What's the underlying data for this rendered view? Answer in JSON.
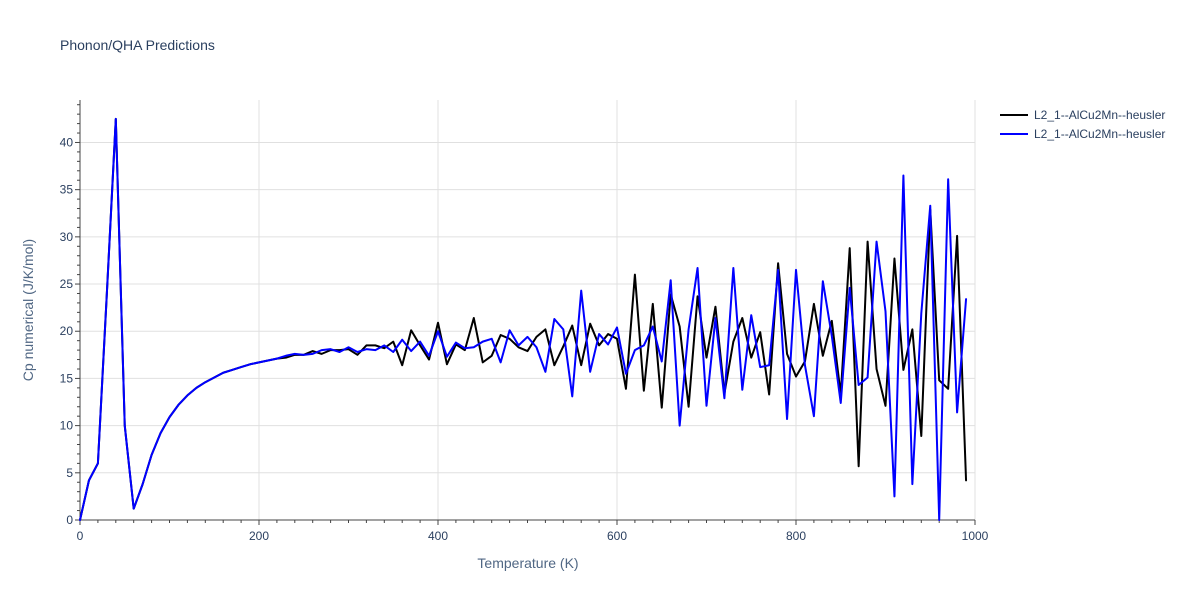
{
  "chart_data": {
    "type": "line",
    "title": "Phonon/QHA Predictions",
    "xlabel": "Temperature (K)",
    "ylabel": "Cp numerical (J/K/mol)",
    "xlim": [
      0,
      1000
    ],
    "ylim": [
      0,
      44.5
    ],
    "x_ticks": [
      0,
      200,
      400,
      600,
      800,
      1000
    ],
    "y_ticks": [
      0,
      5,
      10,
      15,
      20,
      25,
      30,
      35,
      40
    ],
    "grid": true,
    "legend_position": "top-right",
    "x": [
      0,
      10,
      20,
      30,
      40,
      50,
      60,
      70,
      80,
      90,
      100,
      110,
      120,
      130,
      140,
      150,
      160,
      170,
      180,
      190,
      200,
      210,
      220,
      230,
      240,
      250,
      260,
      270,
      280,
      290,
      300,
      310,
      320,
      330,
      340,
      350,
      360,
      370,
      380,
      390,
      400,
      410,
      420,
      430,
      440,
      450,
      460,
      470,
      480,
      490,
      500,
      510,
      520,
      530,
      540,
      550,
      560,
      570,
      580,
      590,
      600,
      610,
      620,
      630,
      640,
      650,
      660,
      670,
      680,
      690,
      700,
      710,
      720,
      730,
      740,
      750,
      760,
      770,
      780,
      790,
      800,
      810,
      820,
      830,
      840,
      850,
      860,
      870,
      880,
      890,
      900,
      910,
      920,
      930,
      940,
      950,
      960,
      970,
      980,
      990
    ],
    "series": [
      {
        "name": "L2_1--AlCu2Mn--heusler",
        "color": "#000000",
        "values": [
          0,
          4.2,
          6.0,
          24.0,
          42.5,
          10.0,
          1.2,
          3.8,
          6.9,
          9.2,
          10.9,
          12.2,
          13.2,
          14.0,
          14.6,
          15.1,
          15.6,
          15.9,
          16.2,
          16.5,
          16.7,
          16.9,
          17.1,
          17.2,
          17.5,
          17.5,
          17.9,
          17.6,
          18.0,
          18.0,
          18.1,
          17.5,
          18.5,
          18.5,
          18.2,
          18.9,
          16.4,
          20.1,
          18.5,
          17.0,
          20.9,
          16.5,
          18.6,
          18.0,
          21.4,
          16.7,
          17.4,
          19.6,
          19.2,
          18.3,
          17.9,
          19.4,
          20.2,
          16.4,
          18.4,
          20.6,
          16.4,
          20.8,
          18.5,
          19.7,
          19.2,
          13.9,
          26.0,
          13.7,
          22.9,
          11.9,
          23.9,
          20.5,
          12.0,
          23.7,
          17.2,
          22.6,
          13.4,
          18.9,
          21.4,
          17.2,
          19.9,
          13.3,
          27.2,
          17.6,
          15.2,
          16.8,
          22.9,
          17.4,
          21.1,
          13.3,
          28.8,
          5.7,
          29.5,
          16.0,
          12.1,
          27.7,
          15.9,
          20.2,
          8.9,
          32.9,
          14.8,
          13.9,
          30.1,
          4.2
        ]
      },
      {
        "name": "L2_1--AlCu2Mn--heusler",
        "color": "#0000ff",
        "values": [
          0,
          4.2,
          6.0,
          24.0,
          42.5,
          10.0,
          1.2,
          3.8,
          6.9,
          9.2,
          10.9,
          12.2,
          13.2,
          14.0,
          14.6,
          15.1,
          15.6,
          15.9,
          16.2,
          16.5,
          16.7,
          16.9,
          17.1,
          17.4,
          17.6,
          17.5,
          17.6,
          18.0,
          18.1,
          17.8,
          18.3,
          17.8,
          18.1,
          18.0,
          18.5,
          17.8,
          19.1,
          17.9,
          18.9,
          17.4,
          20.0,
          17.3,
          18.8,
          18.2,
          18.3,
          18.9,
          19.2,
          16.7,
          20.1,
          18.5,
          19.4,
          18.3,
          15.7,
          21.3,
          20.2,
          13.1,
          24.3,
          15.7,
          19.7,
          18.6,
          20.4,
          15.5,
          18.0,
          18.5,
          20.5,
          16.8,
          25.4,
          10.0,
          20.2,
          26.7,
          12.1,
          21.4,
          12.9,
          26.7,
          13.8,
          21.7,
          16.2,
          16.4,
          26.5,
          10.7,
          26.5,
          16.4,
          11.0,
          25.3,
          19.5,
          12.4,
          24.6,
          14.3,
          15.1,
          29.5,
          22.1,
          2.5,
          36.5,
          3.8,
          21.9,
          33.3,
          0.0,
          36.1,
          11.4,
          23.4
        ]
      }
    ]
  }
}
